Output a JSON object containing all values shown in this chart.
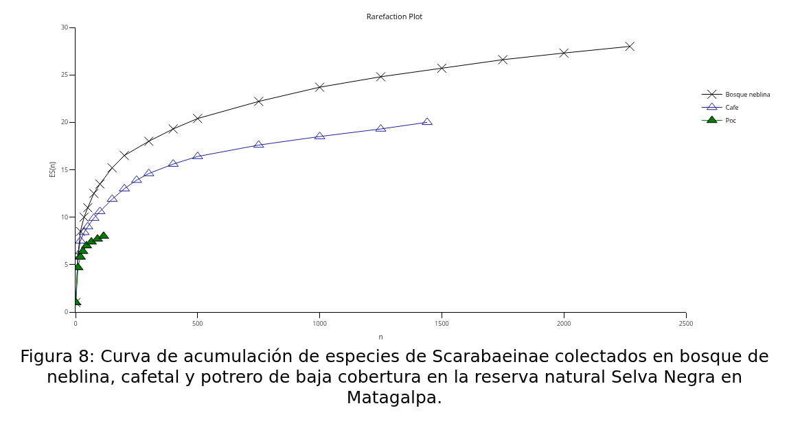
{
  "chart_data": {
    "type": "line",
    "title": "Rarefaction Plot",
    "xlabel": "n",
    "ylabel": "ES(n)",
    "xlim": [
      0,
      2500
    ],
    "xticks": [
      0,
      500,
      1000,
      1500,
      2000,
      2500
    ],
    "ylim": [
      0,
      30
    ],
    "yticks": [
      0,
      5,
      10,
      15,
      20,
      25,
      30
    ],
    "grid": false,
    "legend": "right",
    "series": [
      {
        "name": "Bosque neblina",
        "color": "#000000",
        "marker": "cross",
        "x": [
          1,
          10,
          20,
          35,
          50,
          75,
          100,
          150,
          200,
          300,
          400,
          500,
          750,
          1000,
          1250,
          1500,
          1750,
          2000,
          2270
        ],
        "values": [
          1,
          6,
          8.5,
          10,
          11,
          12.5,
          13.5,
          15.2,
          16.5,
          18,
          19.3,
          20.4,
          22.2,
          23.7,
          24.8,
          25.7,
          26.6,
          27.3,
          28
        ]
      },
      {
        "name": "Cafe",
        "color": "#1f1f9a",
        "marker": "triangle",
        "x": [
          1,
          10,
          20,
          35,
          50,
          75,
          100,
          150,
          200,
          250,
          300,
          400,
          500,
          750,
          1000,
          1250,
          1440
        ],
        "values": [
          1,
          6,
          7.5,
          8.4,
          9,
          9.9,
          10.6,
          11.9,
          13,
          13.9,
          14.6,
          15.6,
          16.4,
          17.6,
          18.5,
          19.3,
          20
        ]
      },
      {
        "name": "Poc",
        "color": "#007a00",
        "marker": "triangle-filled",
        "x": [
          1,
          10,
          20,
          30,
          45,
          65,
          90,
          115
        ],
        "values": [
          1,
          4.7,
          5.8,
          6.4,
          7,
          7.4,
          7.7,
          8
        ]
      }
    ],
    "annotations": [
      "Figura 8: Curva de acumulación de especies de Scarabaeinae colectados en bosque de neblina, cafetal y potrero de baja cobertura en la reserva natural Selva Negra en Matagalpa."
    ]
  }
}
